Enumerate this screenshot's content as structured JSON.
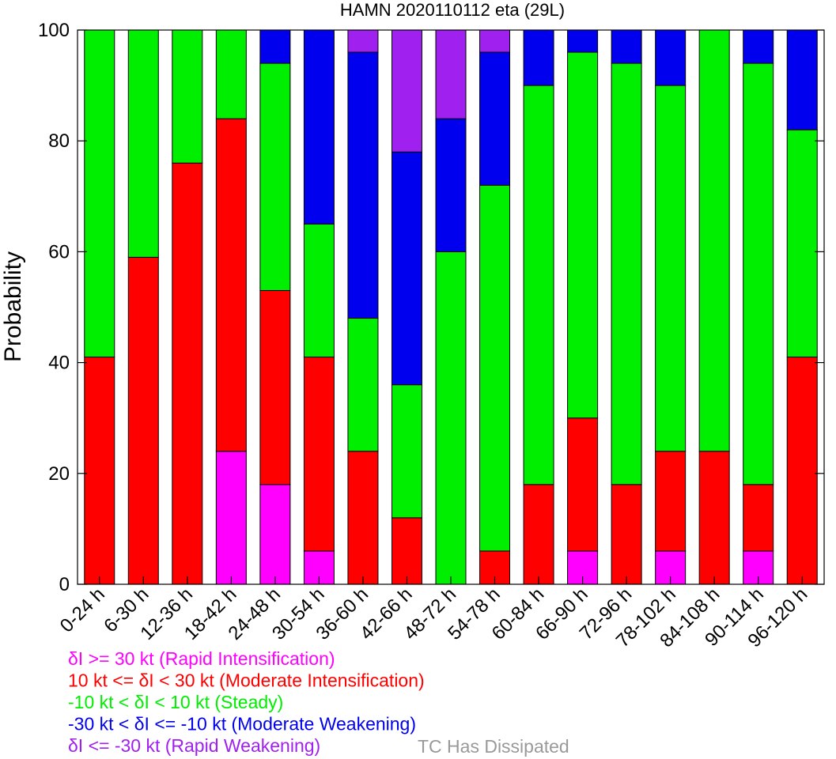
{
  "chart_data": {
    "type": "bar",
    "stacked": true,
    "title": "HAMN 2020110112 eta (29L)",
    "xlabel": "",
    "ylabel": "Probability",
    "ylim": [
      0,
      100
    ],
    "yticks": [
      0,
      20,
      40,
      60,
      80,
      100
    ],
    "grid": false,
    "legend_position": "bottom-left",
    "categories": [
      "0-24 h",
      "6-30 h",
      "12-36 h",
      "18-42 h",
      "24-48 h",
      "30-54 h",
      "36-60 h",
      "42-66 h",
      "48-72 h",
      "54-78 h",
      "60-84 h",
      "66-90 h",
      "72-96 h",
      "78-102 h",
      "84-108 h",
      "90-114 h",
      "96-120 h"
    ],
    "series": [
      {
        "name": "δI >= 30 kt (Rapid Intensification)",
        "color": "#ff00ff",
        "values": [
          0,
          0,
          0,
          24,
          18,
          6,
          0,
          0,
          0,
          0,
          0,
          6,
          0,
          6,
          0,
          6,
          0
        ]
      },
      {
        "name": "10 kt <= δI < 30 kt (Moderate Intensification)",
        "color": "#ff0000",
        "values": [
          41,
          59,
          76,
          60,
          35,
          35,
          24,
          12,
          0,
          6,
          18,
          24,
          18,
          18,
          24,
          12,
          41
        ]
      },
      {
        "name": "-10 kt < δI < 10 kt (Steady)",
        "color": "#00ee00",
        "values": [
          59,
          41,
          24,
          16,
          41,
          24,
          24,
          24,
          60,
          66,
          72,
          66,
          76,
          66,
          76,
          76,
          41
        ]
      },
      {
        "name": "-30 kt < δI <= -10 kt (Moderate Weakening)",
        "color": "#0000ee",
        "values": [
          0,
          0,
          0,
          0,
          6,
          35,
          48,
          42,
          24,
          24,
          10,
          4,
          6,
          10,
          0,
          6,
          18
        ]
      },
      {
        "name": "δI <= -30 kt (Rapid Weakening)",
        "color": "#a020f0",
        "values": [
          0,
          0,
          0,
          0,
          0,
          0,
          4,
          22,
          16,
          4,
          0,
          0,
          0,
          0,
          0,
          0,
          0
        ]
      }
    ],
    "dissipated_label": "TC Has Dissipated",
    "dissipated_color": "#999999"
  }
}
